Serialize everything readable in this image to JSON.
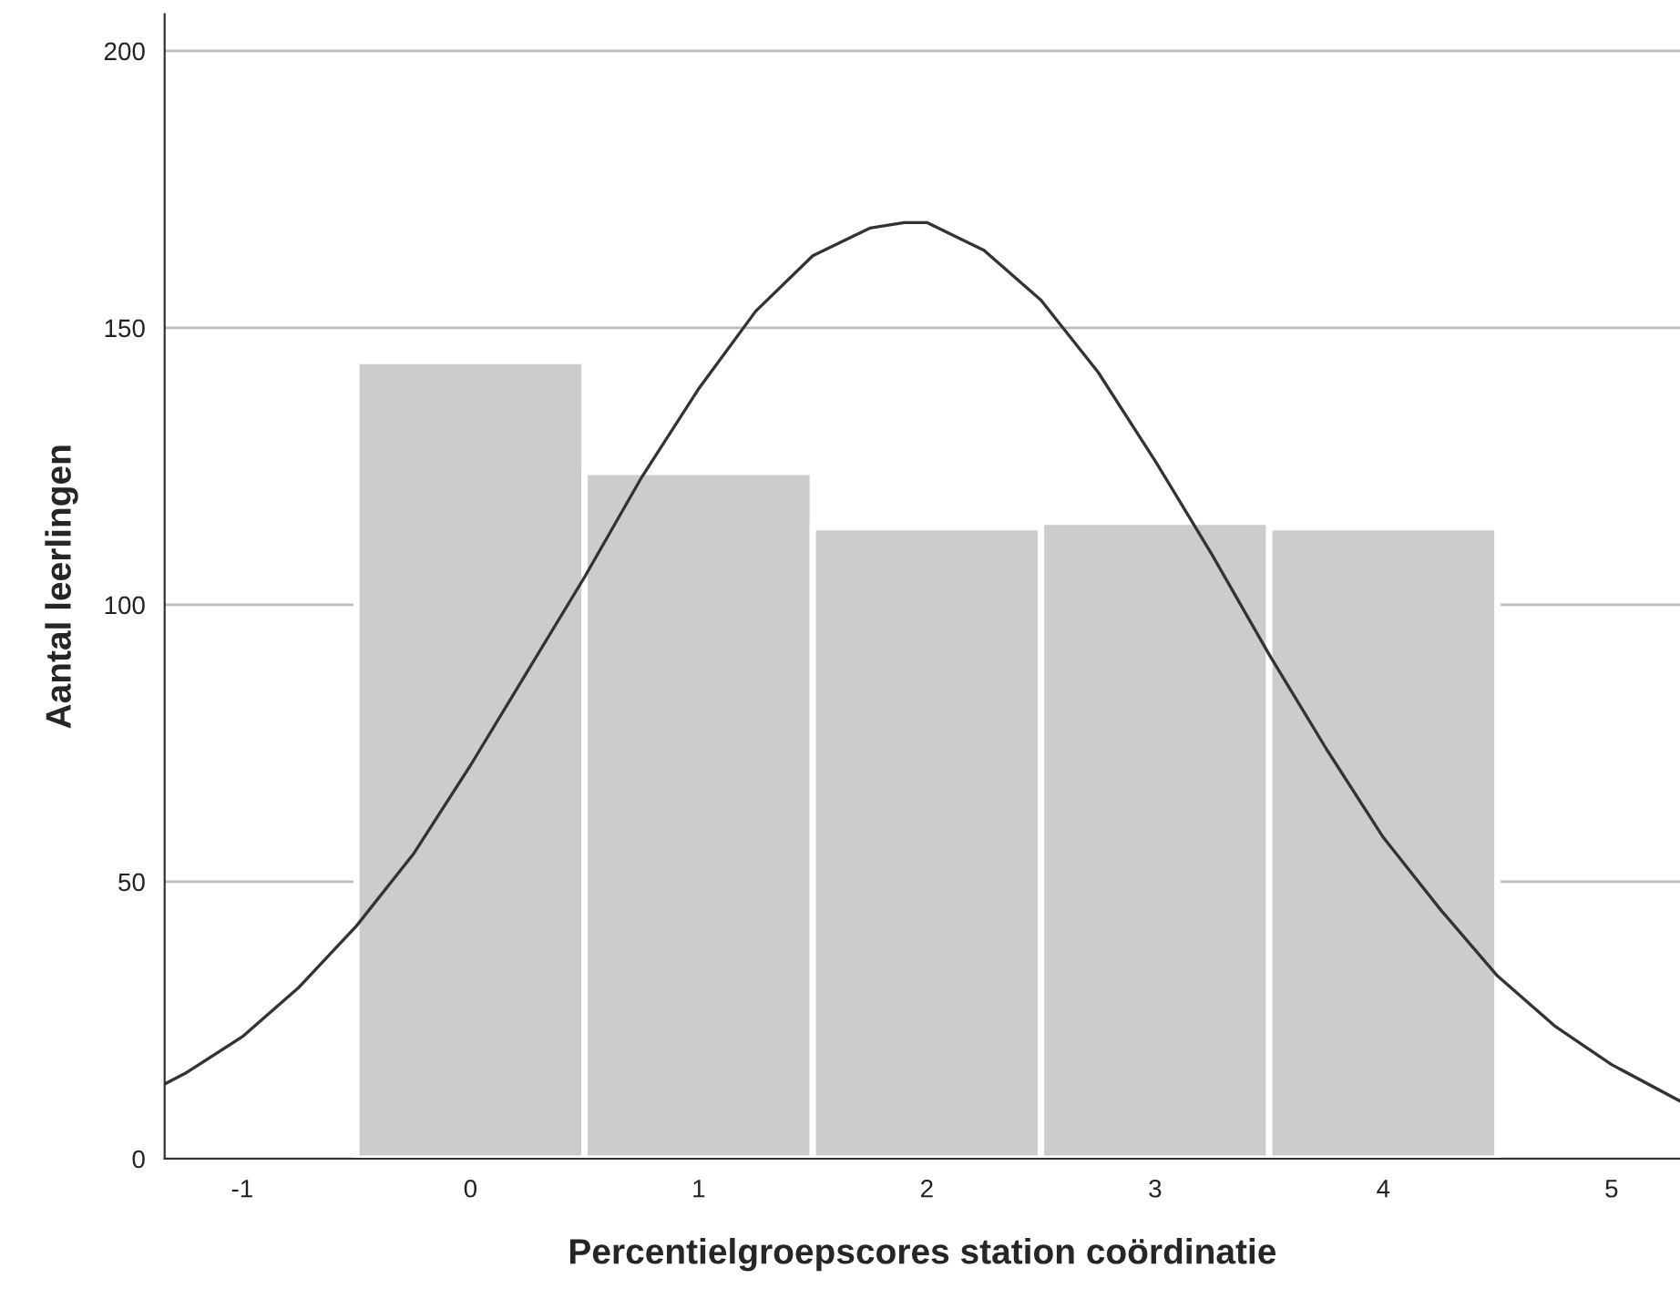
{
  "chart_data": {
    "type": "histogram",
    "xlabel": "Percentielgroepscores station coördinatie",
    "ylabel": "Aantal leerlingen",
    "bins": [
      -0.5,
      0.5,
      1.5,
      2.5,
      3.5,
      4.5
    ],
    "values": [
      144,
      124,
      114,
      115,
      114
    ],
    "color": "#cccccc",
    "series": [
      {
        "type": "line",
        "color": "#333333",
        "x": [
          -1.34,
          -1.25,
          -1,
          -0.75,
          -0.5,
          -0.25,
          0,
          0.25,
          0.5,
          0.75,
          1,
          1.25,
          1.5,
          1.75,
          1.9,
          2,
          2.25,
          2.5,
          2.75,
          3,
          3.25,
          3.5,
          3.75,
          4,
          4.25,
          4.5,
          4.75,
          5,
          5.3
        ],
        "values": [
          13.5,
          15.4,
          22,
          31,
          42,
          55,
          71,
          88,
          105,
          123,
          139,
          153,
          163,
          168,
          169,
          169,
          164,
          155,
          142,
          126,
          109,
          91,
          74,
          58,
          45,
          33,
          24,
          17,
          10.4
        ]
      }
    ],
    "xlim": [
      -1.34,
      5.3
    ],
    "xticks": [
      -1,
      0,
      1,
      2,
      3,
      4,
      5
    ],
    "ylim": [
      0,
      206.6
    ],
    "yticks": [
      0,
      50,
      100,
      150,
      200
    ],
    "grid": "y"
  }
}
